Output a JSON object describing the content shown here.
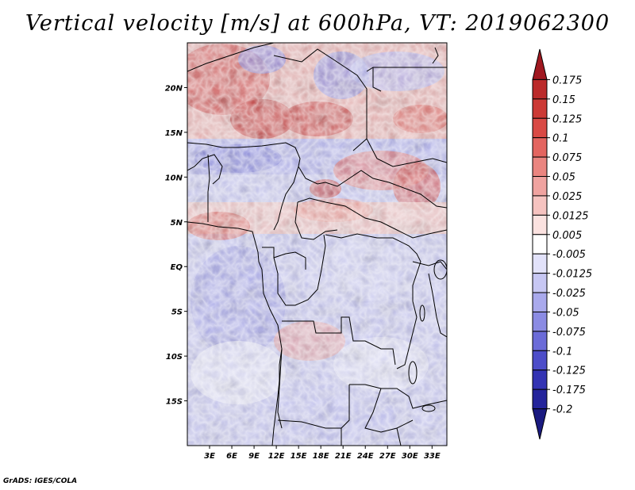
{
  "title": "Vertical velocity [m/s] at 600hPa, VT: 2019062300",
  "footer": "GrADS: IGES/COLA",
  "map": {
    "variable": "Vertical velocity",
    "units": "m/s",
    "level": "600hPa",
    "valid_time": "2019062300",
    "lon_range": [
      0,
      35
    ],
    "lat_range": [
      -20,
      25
    ],
    "x_ticks": [
      "3E",
      "6E",
      "9E",
      "12E",
      "15E",
      "18E",
      "21E",
      "24E",
      "27E",
      "30E",
      "33E"
    ],
    "y_ticks": [
      "20N",
      "15N",
      "10N",
      "5N",
      "EQ",
      "5S",
      "10S",
      "15S"
    ],
    "features": [
      "political borders",
      "coastlines",
      "lakes"
    ]
  },
  "colorbar": {
    "labels": [
      "0.175",
      "0.15",
      "0.125",
      "0.1",
      "0.075",
      "0.05",
      "0.025",
      "0.0125",
      "0.005",
      "-0.005",
      "-0.0125",
      "-0.025",
      "-0.05",
      "-0.075",
      "-0.1",
      "-0.125",
      "-0.175",
      "-0.2"
    ],
    "colors": [
      "#a01820",
      "#bb2a2a",
      "#cc3a35",
      "#d94a45",
      "#e36560",
      "#ea8580",
      "#f0a3a0",
      "#f6c3c0",
      "#fbe2e0",
      "#ffffff",
      "#e2e2fa",
      "#c7c7f3",
      "#a9a9ec",
      "#8b8be3",
      "#6b6bd8",
      "#4d4dc9",
      "#3333b3",
      "#24249b",
      "#1a1a80"
    ],
    "extend": "both"
  }
}
